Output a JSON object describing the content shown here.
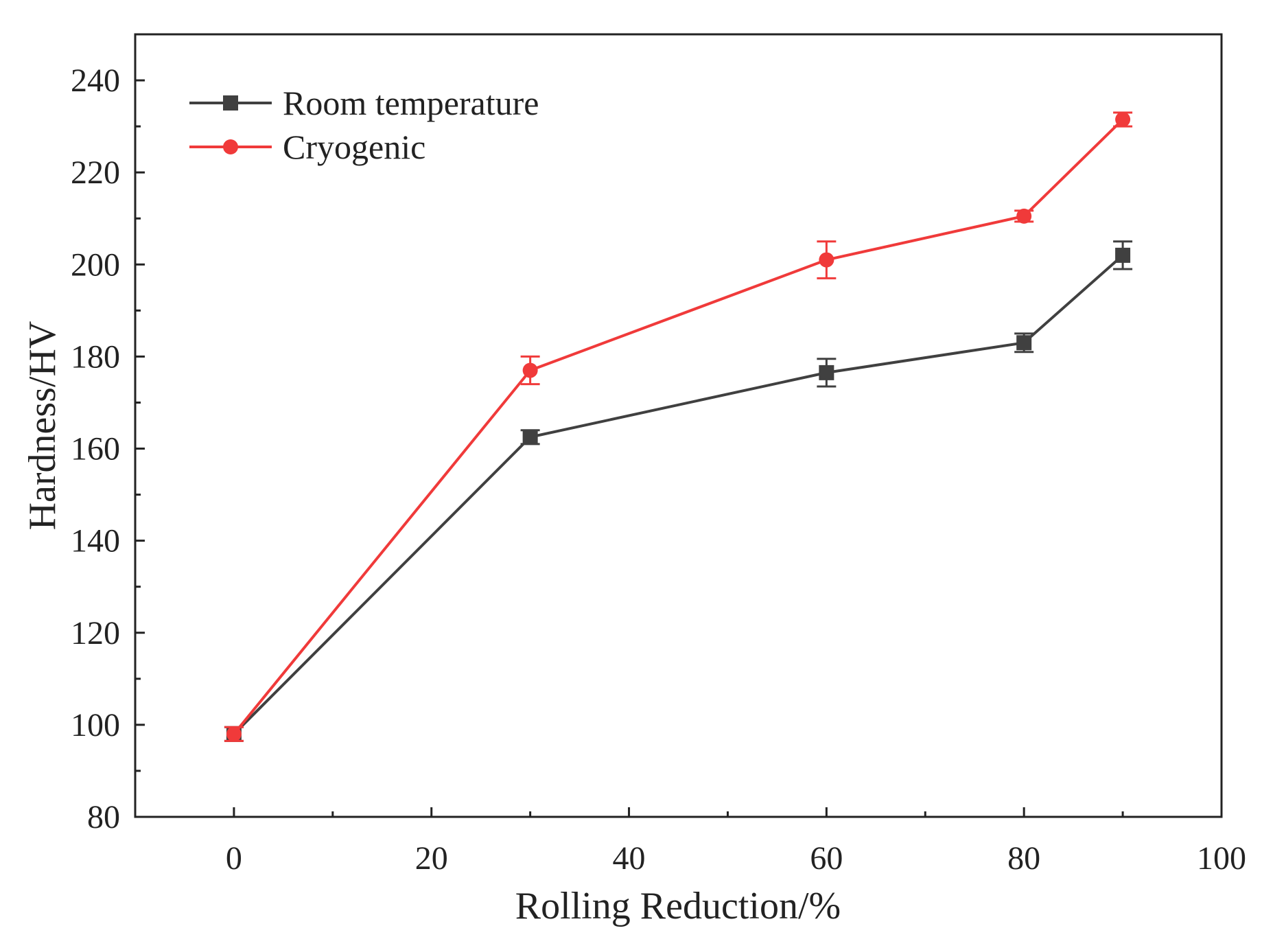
{
  "chart_data": {
    "type": "line",
    "title": "",
    "xlabel": "Rolling Reduction/%",
    "ylabel": "Hardness/HV",
    "xlim": [
      -10,
      100
    ],
    "ylim": [
      80,
      250
    ],
    "xticks": [
      0,
      20,
      40,
      60,
      80,
      100
    ],
    "yticks": [
      80,
      100,
      120,
      140,
      160,
      180,
      200,
      220,
      240
    ],
    "x_minor_ticks": [
      10,
      30,
      50,
      70,
      90
    ],
    "y_minor_ticks": [
      90,
      110,
      130,
      150,
      170,
      190,
      210,
      230
    ],
    "legend_position": "top-left",
    "series": [
      {
        "name": "Room temperature",
        "color": "#404040",
        "marker": "square",
        "x": [
          0,
          30,
          60,
          80,
          90
        ],
        "values": [
          98,
          162.5,
          176.5,
          183,
          202
        ],
        "errors": [
          1.5,
          1.5,
          3,
          2,
          3
        ]
      },
      {
        "name": "Cryogenic",
        "color": "#f03a3a",
        "marker": "circle",
        "x": [
          0,
          30,
          60,
          80,
          90
        ],
        "values": [
          98,
          177,
          201,
          210.5,
          231.5
        ],
        "errors": [
          1.5,
          3,
          4,
          1.2,
          1.5
        ]
      }
    ]
  }
}
